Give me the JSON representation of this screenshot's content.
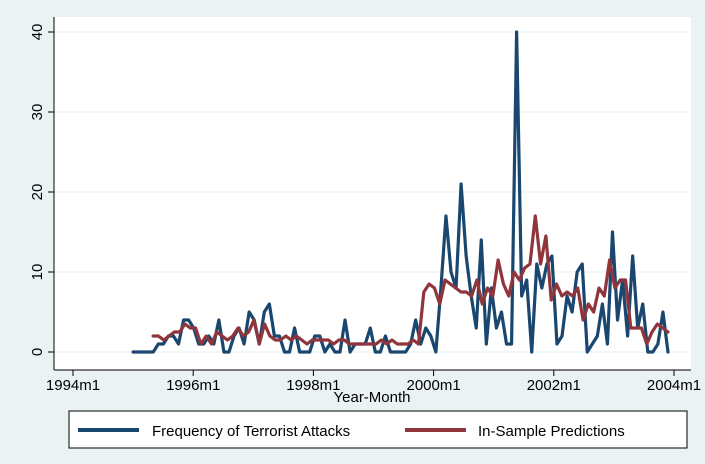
{
  "chart_data": {
    "type": "line",
    "title": "",
    "xlabel": "Year-Month",
    "ylabel": "",
    "x_ticks": [
      {
        "label": "1994m1",
        "value": 1994.0
      },
      {
        "label": "1996m1",
        "value": 1996.0
      },
      {
        "label": "1998m1",
        "value": 1998.0
      },
      {
        "label": "2000m1",
        "value": 2000.0
      },
      {
        "label": "2002m1",
        "value": 2002.0
      },
      {
        "label": "2004m1",
        "value": 2004.0
      }
    ],
    "y_ticks": [
      0,
      10,
      20,
      30,
      40
    ],
    "xlim": [
      1994.0,
      2004.0
    ],
    "ylim": [
      0,
      40
    ],
    "grid": "horizontal",
    "legend_position": "bottom",
    "series": [
      {
        "name": "Frequency of Terrorist Attacks",
        "color": "#1a476f",
        "x_start": 1995.0,
        "values": [
          0,
          0,
          0,
          0,
          0,
          1,
          1,
          2,
          2,
          1,
          4,
          4,
          3,
          1,
          1,
          2,
          1,
          4,
          0,
          0,
          2,
          3,
          1,
          5,
          4,
          1,
          5,
          6,
          2,
          2,
          0,
          0,
          3,
          0,
          0,
          0,
          2,
          2,
          0,
          1,
          0,
          0,
          4,
          0,
          1,
          1,
          1,
          3,
          0,
          0,
          2,
          0,
          0,
          0,
          0,
          1,
          4,
          1,
          3,
          2,
          0,
          8,
          17,
          10,
          8,
          21,
          12,
          7,
          3,
          14,
          1,
          8,
          3,
          5,
          1,
          1,
          40,
          7,
          9,
          0,
          11,
          8,
          11,
          12,
          1,
          2,
          7,
          5,
          10,
          11,
          0,
          1,
          2,
          6,
          1,
          15,
          4,
          9,
          2,
          12,
          3,
          6,
          0,
          0,
          1,
          5,
          0
        ],
        "end_x": 2003.9
      },
      {
        "name": "In-Sample Predictions",
        "color": "#90353b",
        "x_start": 1995.333,
        "values": [
          2,
          2,
          1.5,
          2,
          2.5,
          2.5,
          3.5,
          3,
          3,
          1,
          2,
          1,
          2.5,
          2,
          1.5,
          2,
          3,
          2,
          2.5,
          4,
          1,
          3.5,
          2,
          1.5,
          1.5,
          2,
          1.5,
          2,
          1.5,
          1,
          1.5,
          1.5,
          1.5,
          1.5,
          1,
          1.5,
          1.5,
          1,
          1,
          1,
          1,
          1,
          1,
          1.5,
          1,
          1.5,
          1,
          1,
          1,
          1.5,
          1,
          7.5,
          8.5,
          8,
          6,
          9,
          8.5,
          8,
          7.5,
          7.5,
          7,
          9,
          6,
          8,
          7,
          11.5,
          8.5,
          7,
          10,
          9,
          10.5,
          11,
          17,
          11,
          14.5,
          6.5,
          8.5,
          7,
          7.5,
          7,
          8,
          4,
          6,
          5,
          8,
          7,
          11.5,
          8,
          9,
          9,
          3,
          3,
          3,
          1,
          2.5,
          3.5,
          3,
          2.5
        ],
        "end_x": 2003.9
      }
    ]
  }
}
